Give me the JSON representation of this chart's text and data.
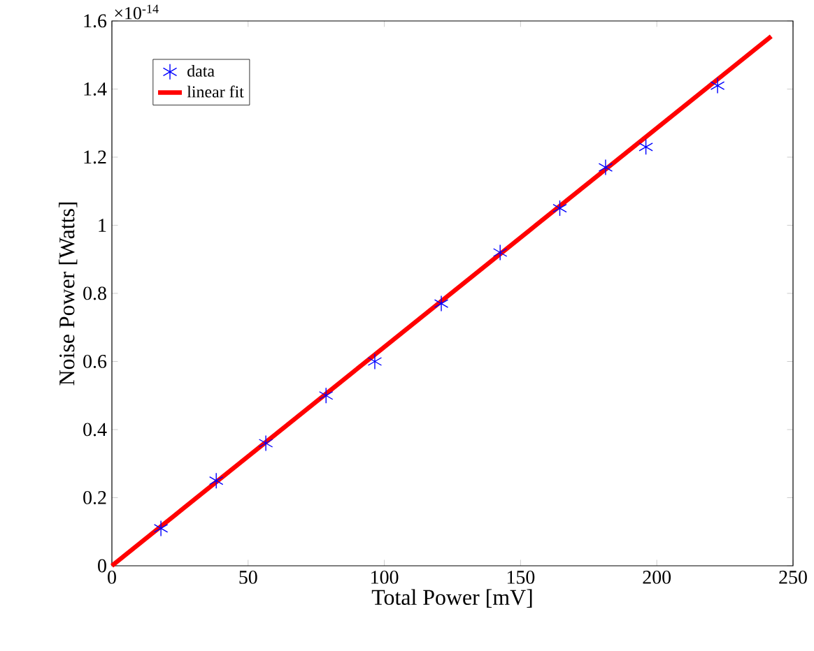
{
  "chart_data": {
    "type": "scatter",
    "xlabel": "Total Power [mV]",
    "ylabel": "Noise Power [Watts]",
    "annotations": [
      "×10$^{-14}$"
    ],
    "x": [
      18,
      38.3,
      56.5,
      78.6,
      96.5,
      120.9,
      142.5,
      164.4,
      181.2,
      196,
      222.3
    ],
    "series": [
      {
        "name": "data",
        "color": "#0000ff",
        "marker": "cross",
        "values": [
          0.11,
          0.25,
          0.36,
          0.5,
          0.6,
          0.77,
          0.92,
          1.05,
          1.17,
          1.23,
          1.41
        ]
      },
      {
        "name": "linear fit",
        "type": "line",
        "color": "#ff0000",
        "marker": "none",
        "line_style": "solid",
        "x": [
          0,
          242
        ],
        "values": [
          0,
          1.555
        ]
      }
    ],
    "xlim": [
      0,
      250
    ],
    "xticks": [
      0,
      50,
      100,
      150,
      200,
      250
    ],
    "ylim": [
      0,
      1.6
    ],
    "yticks": [
      0,
      {
        "value": 0.2,
        "label": "0.2"
      },
      {
        "value": 0.4,
        "label": "0.4"
      },
      {
        "value": 0.6,
        "label": "0.6"
      },
      {
        "value": 0.8,
        "label": "0.8"
      },
      1,
      {
        "value": 1.2,
        "label": "1.2"
      },
      {
        "value": 1.4,
        "label": "1.4"
      },
      {
        "value": 1.6,
        "label": "1.6"
      }
    ],
    "grid": false,
    "legend": "top left"
  }
}
